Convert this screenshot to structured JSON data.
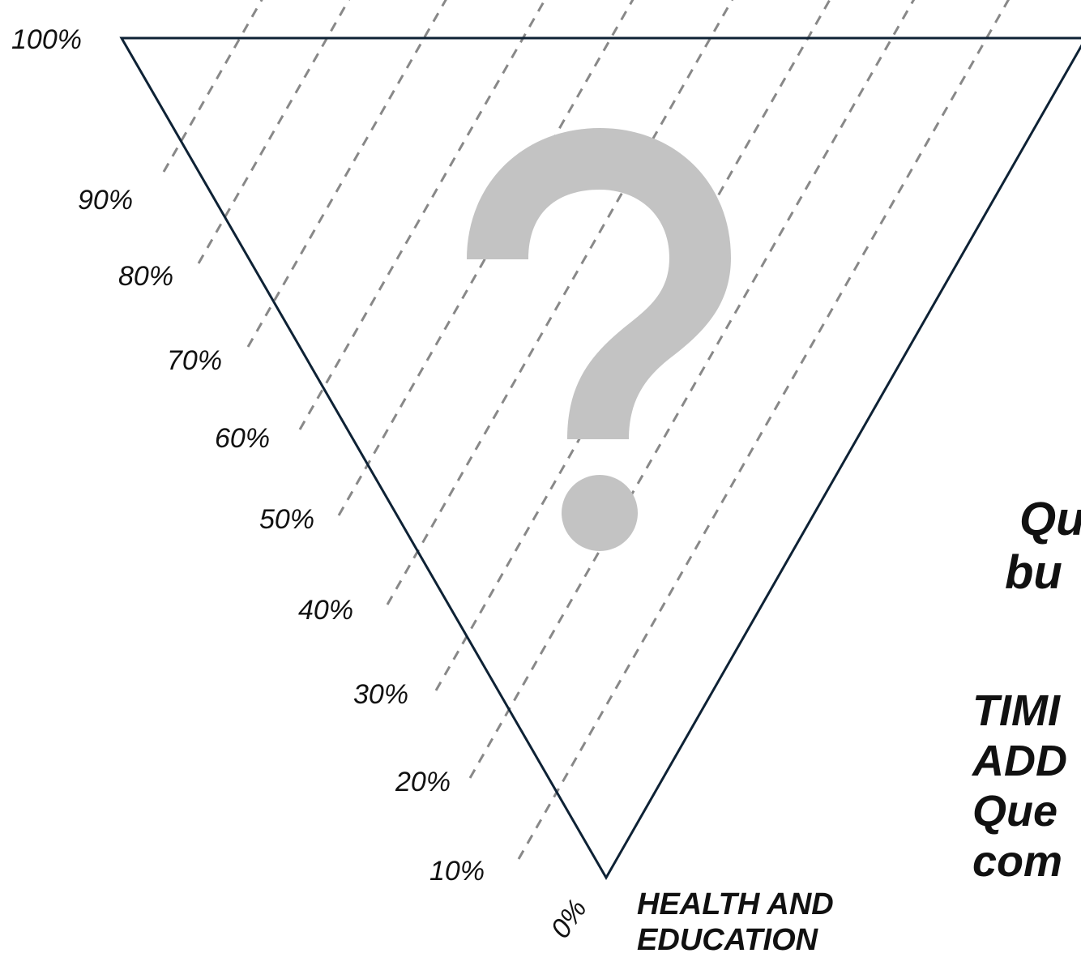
{
  "diagram": {
    "axis_ticks": [
      "100%",
      "90%",
      "80%",
      "70%",
      "60%",
      "50%",
      "40%",
      "30%",
      "20%",
      "10%",
      "0%"
    ],
    "axis_title_lines": [
      "HEALTH AND",
      "EDUCATION"
    ],
    "colors": {
      "triangle": "#0e2235",
      "dashed": "#888888",
      "question_mark": "#c3c3c3",
      "text": "#111111"
    },
    "icon": "question-mark-icon",
    "clipped_text": {
      "block1": [
        "Qu",
        "bu"
      ],
      "block2": [
        "TIMI",
        "ADD",
        "Que",
        "com"
      ]
    }
  }
}
